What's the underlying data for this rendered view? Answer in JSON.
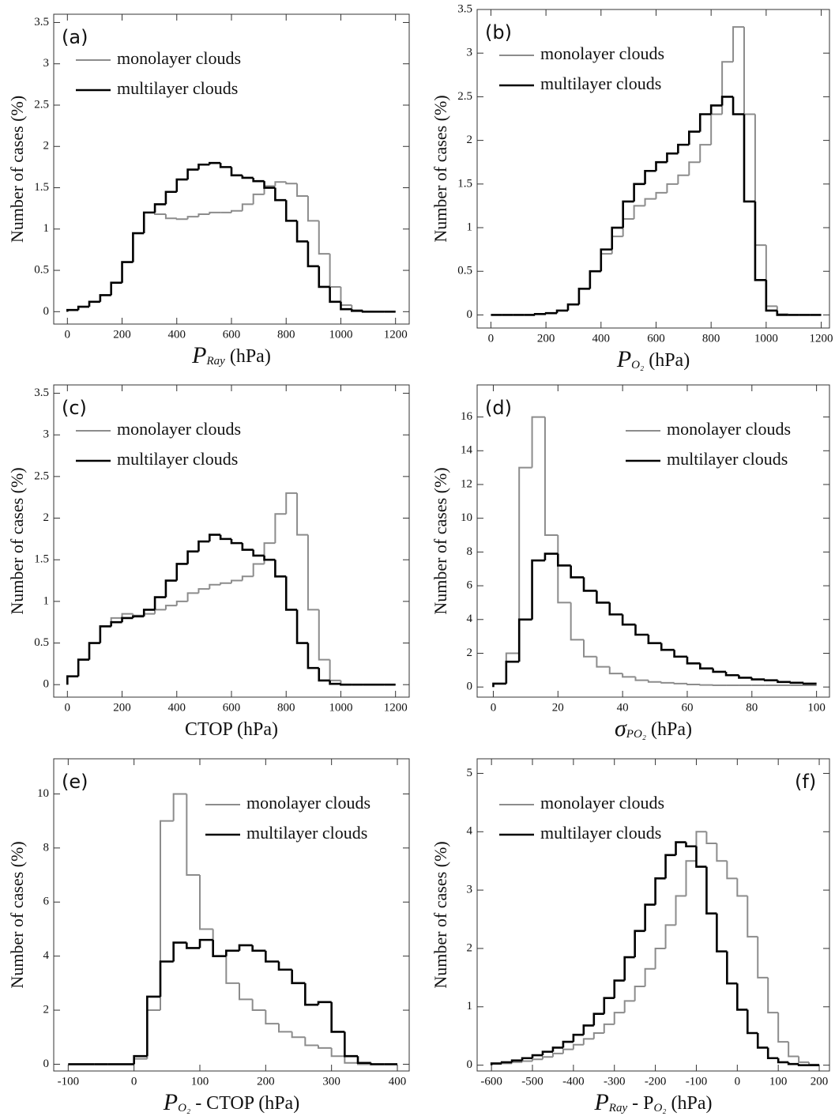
{
  "chart_data": [
    {
      "type": "histogram",
      "label": "(a)",
      "ylabel": "Number of cases (%)",
      "xlabel": [
        {
          "text": "P",
          "role": "main"
        },
        {
          "text": "Ray",
          "role": "sub"
        },
        {
          "text": " (hPa)",
          "role": "main"
        }
      ],
      "legend": "upper left",
      "label_corner": "upper left",
      "bins": [
        0,
        40,
        80,
        120,
        160,
        200,
        240,
        280,
        320,
        360,
        400,
        440,
        480,
        520,
        560,
        600,
        640,
        680,
        720,
        760,
        800,
        840,
        880,
        920,
        960,
        1000,
        1040,
        1080,
        1120,
        1160,
        1200
      ],
      "series": [
        {
          "name": "monolayer clouds",
          "color": "#8c8c8c",
          "values": [
            0.02,
            0.06,
            0.12,
            0.2,
            0.35,
            0.6,
            0.95,
            1.2,
            1.18,
            1.13,
            1.12,
            1.15,
            1.18,
            1.2,
            1.2,
            1.22,
            1.3,
            1.42,
            1.52,
            1.57,
            1.55,
            1.4,
            1.1,
            0.7,
            0.3,
            0.08,
            0.02,
            0,
            0,
            0
          ]
        },
        {
          "name": "multilayer clouds",
          "color": "#000000",
          "values": [
            0.02,
            0.06,
            0.12,
            0.2,
            0.35,
            0.6,
            0.95,
            1.2,
            1.3,
            1.45,
            1.6,
            1.72,
            1.78,
            1.8,
            1.75,
            1.65,
            1.62,
            1.58,
            1.5,
            1.35,
            1.1,
            0.85,
            0.55,
            0.3,
            0.12,
            0.03,
            0.01,
            0,
            0,
            0
          ]
        }
      ],
      "xlim": [
        -50,
        1250
      ],
      "ylim": [
        -0.15,
        3.6
      ],
      "xticks": [
        0,
        200,
        400,
        600,
        800,
        1000,
        1200
      ],
      "yticks": [
        0,
        0.5,
        1,
        1.5,
        2,
        2.5,
        3,
        3.5
      ]
    },
    {
      "type": "histogram",
      "label": "(b)",
      "ylabel": "Number of cases (%)",
      "xlabel": [
        {
          "text": "P",
          "role": "main"
        },
        {
          "text": "O₂",
          "role": "sub"
        },
        {
          "text": " (hPa)",
          "role": "main"
        }
      ],
      "legend": "upper left",
      "label_corner": "upper left",
      "bins": [
        0,
        40,
        80,
        120,
        160,
        200,
        240,
        280,
        320,
        360,
        400,
        440,
        480,
        520,
        560,
        600,
        640,
        680,
        720,
        760,
        800,
        840,
        880,
        920,
        960,
        1000,
        1040,
        1080,
        1120,
        1160,
        1200
      ],
      "series": [
        {
          "name": "monolayer clouds",
          "color": "#8c8c8c",
          "values": [
            0,
            0,
            0,
            0,
            0.01,
            0.02,
            0.05,
            0.12,
            0.3,
            0.5,
            0.7,
            0.9,
            1.1,
            1.25,
            1.33,
            1.4,
            1.5,
            1.6,
            1.75,
            1.95,
            2.3,
            2.9,
            3.3,
            2.3,
            0.8,
            0.1,
            0.01,
            0,
            0,
            0
          ]
        },
        {
          "name": "multilayer clouds",
          "color": "#000000",
          "values": [
            0,
            0,
            0,
            0,
            0.01,
            0.02,
            0.05,
            0.12,
            0.3,
            0.5,
            0.75,
            1.0,
            1.3,
            1.5,
            1.65,
            1.75,
            1.85,
            1.95,
            2.1,
            2.3,
            2.4,
            2.5,
            2.3,
            1.3,
            0.4,
            0.05,
            0,
            0,
            0,
            0
          ]
        }
      ],
      "xlim": [
        -50,
        1230
      ],
      "ylim": [
        -0.15,
        3.5
      ],
      "xticks": [
        0,
        200,
        400,
        600,
        800,
        1000,
        1200
      ],
      "yticks": [
        0,
        0.5,
        1,
        1.5,
        2,
        2.5,
        3,
        3.5
      ]
    },
    {
      "type": "histogram",
      "label": "(c)",
      "ylabel": "Number of cases (%)",
      "xlabel": [
        {
          "text": "CTOP (hPa)",
          "role": "main"
        }
      ],
      "legend": "upper left",
      "label_corner": "upper left",
      "bins": [
        0,
        40,
        80,
        120,
        160,
        200,
        240,
        280,
        320,
        360,
        400,
        440,
        480,
        520,
        560,
        600,
        640,
        680,
        720,
        760,
        800,
        840,
        880,
        920,
        960,
        1000,
        1040,
        1080,
        1120,
        1160,
        1200
      ],
      "series": [
        {
          "name": "monolayer clouds",
          "color": "#8c8c8c",
          "values": [
            0.1,
            0.3,
            0.5,
            0.7,
            0.8,
            0.85,
            0.83,
            0.85,
            0.9,
            0.95,
            1.0,
            1.1,
            1.15,
            1.2,
            1.22,
            1.25,
            1.3,
            1.45,
            1.7,
            2.05,
            2.3,
            1.8,
            0.9,
            0.3,
            0.05,
            0,
            0,
            0,
            0,
            0
          ]
        },
        {
          "name": "multilayer clouds",
          "color": "#000000",
          "values": [
            0.1,
            0.3,
            0.5,
            0.7,
            0.75,
            0.8,
            0.82,
            0.9,
            1.05,
            1.25,
            1.45,
            1.6,
            1.72,
            1.8,
            1.75,
            1.7,
            1.62,
            1.55,
            1.5,
            1.3,
            0.9,
            0.5,
            0.2,
            0.05,
            0.01,
            0,
            0,
            0,
            0,
            0
          ]
        }
      ],
      "xlim": [
        -50,
        1250
      ],
      "ylim": [
        -0.15,
        3.6
      ],
      "xticks": [
        0,
        200,
        400,
        600,
        800,
        1000,
        1200
      ],
      "yticks": [
        0,
        0.5,
        1,
        1.5,
        2,
        2.5,
        3,
        3.5
      ]
    },
    {
      "type": "histogram",
      "label": "(d)",
      "ylabel": "Number of cases (%)",
      "xlabel": [
        {
          "text": "σ",
          "role": "main"
        },
        {
          "text": "PO₂",
          "role": "sub"
        },
        {
          "text": " (hPa)",
          "role": "main"
        }
      ],
      "legend": "upper right",
      "label_corner": "upper left",
      "bins": [
        0,
        4,
        8,
        12,
        16,
        20,
        24,
        28,
        32,
        36,
        40,
        44,
        48,
        52,
        56,
        60,
        64,
        68,
        72,
        76,
        80,
        84,
        88,
        92,
        96,
        100
      ],
      "series": [
        {
          "name": "monolayer clouds",
          "color": "#8c8c8c",
          "values": [
            0.2,
            2,
            13,
            16,
            9,
            5,
            2.8,
            1.8,
            1.2,
            0.8,
            0.6,
            0.4,
            0.3,
            0.25,
            0.2,
            0.15,
            0.12,
            0.1,
            0.1,
            0.1,
            0.1,
            0.1,
            0.1,
            0.1,
            0.1
          ]
        },
        {
          "name": "multilayer clouds",
          "color": "#000000",
          "values": [
            0.2,
            1.5,
            4,
            7.5,
            7.9,
            7.2,
            6.5,
            5.7,
            5,
            4.3,
            3.7,
            3.1,
            2.6,
            2.2,
            1.8,
            1.4,
            1.1,
            0.9,
            0.7,
            0.55,
            0.45,
            0.4,
            0.3,
            0.25,
            0.2
          ]
        }
      ],
      "xlim": [
        -5,
        104
      ],
      "ylim": [
        -0.6,
        17.9
      ],
      "xticks": [
        0,
        20,
        40,
        60,
        80,
        100
      ],
      "yticks": [
        0,
        2,
        4,
        6,
        8,
        10,
        12,
        14,
        16
      ]
    },
    {
      "type": "histogram",
      "label": "(e)",
      "ylabel": "Number of cases (%)",
      "xlabel": [
        {
          "text": "P",
          "role": "main"
        },
        {
          "text": "O₂",
          "role": "sub"
        },
        {
          "text": " - CTOP (hPa)",
          "role": "main"
        }
      ],
      "legend": "upper right",
      "label_corner": "upper left",
      "bins": [
        -100,
        -80,
        -60,
        -40,
        -20,
        0,
        20,
        40,
        60,
        80,
        100,
        120,
        140,
        160,
        180,
        200,
        220,
        240,
        260,
        280,
        300,
        320,
        340,
        360,
        380,
        400
      ],
      "series": [
        {
          "name": "monolayer clouds",
          "color": "#8c8c8c",
          "values": [
            0,
            0,
            0,
            0,
            0,
            0.2,
            2,
            9,
            10,
            7,
            5,
            4,
            3,
            2.4,
            2.0,
            1.5,
            1.2,
            1.0,
            0.7,
            0.6,
            0.3,
            0.05,
            0,
            0,
            0
          ]
        },
        {
          "name": "multilayer clouds",
          "color": "#000000",
          "values": [
            0,
            0,
            0,
            0,
            0,
            0.3,
            2.5,
            3.8,
            4.5,
            4.3,
            4.6,
            4.0,
            4.2,
            4.4,
            4.2,
            3.8,
            3.5,
            3.0,
            2.2,
            2.3,
            1.2,
            0.3,
            0.05,
            0,
            0
          ]
        }
      ],
      "xlim": [
        -122,
        418
      ],
      "ylim": [
        -0.25,
        11.3
      ],
      "xticks": [
        -100,
        0,
        100,
        200,
        300,
        400
      ],
      "yticks": [
        0,
        2,
        4,
        6,
        8,
        10
      ]
    },
    {
      "type": "histogram",
      "label": "(f)",
      "ylabel": "Number of cases (%)",
      "xlabel": [
        {
          "text": "P",
          "role": "main"
        },
        {
          "text": "Ray",
          "role": "sub"
        },
        {
          "text": " - P",
          "role": "main"
        },
        {
          "text": "O₂",
          "role": "sub"
        },
        {
          "text": " (hPa)",
          "role": "main"
        }
      ],
      "legend": "upper left",
      "label_corner": "upper right",
      "bins": [
        -600,
        -575,
        -550,
        -525,
        -500,
        -475,
        -450,
        -425,
        -400,
        -375,
        -350,
        -325,
        -300,
        -275,
        -250,
        -225,
        -200,
        -175,
        -150,
        -125,
        -100,
        -75,
        -50,
        -25,
        0,
        25,
        50,
        75,
        100,
        125,
        150,
        175,
        200
      ],
      "series": [
        {
          "name": "monolayer clouds",
          "color": "#8c8c8c",
          "values": [
            0.02,
            0.03,
            0.05,
            0.07,
            0.1,
            0.14,
            0.2,
            0.27,
            0.35,
            0.45,
            0.55,
            0.7,
            0.9,
            1.1,
            1.35,
            1.65,
            2.0,
            2.4,
            2.9,
            3.5,
            4.0,
            3.8,
            3.5,
            3.2,
            2.9,
            2.2,
            1.5,
            0.9,
            0.4,
            0.15,
            0.05,
            0.01
          ]
        },
        {
          "name": "multilayer clouds",
          "color": "#000000",
          "values": [
            0.03,
            0.05,
            0.08,
            0.12,
            0.17,
            0.23,
            0.3,
            0.4,
            0.52,
            0.68,
            0.88,
            1.15,
            1.45,
            1.85,
            2.3,
            2.75,
            3.2,
            3.6,
            3.82,
            3.75,
            3.4,
            2.6,
            1.95,
            1.4,
            0.95,
            0.55,
            0.3,
            0.12,
            0.05,
            0.02,
            0,
            0
          ]
        }
      ],
      "xlim": [
        -635,
        225
      ],
      "ylim": [
        -0.1,
        5.25
      ],
      "xticks": [
        -600,
        -500,
        -400,
        -300,
        -200,
        -100,
        0,
        100,
        200
      ],
      "yticks": [
        0,
        1,
        2,
        3,
        4,
        5
      ]
    }
  ]
}
